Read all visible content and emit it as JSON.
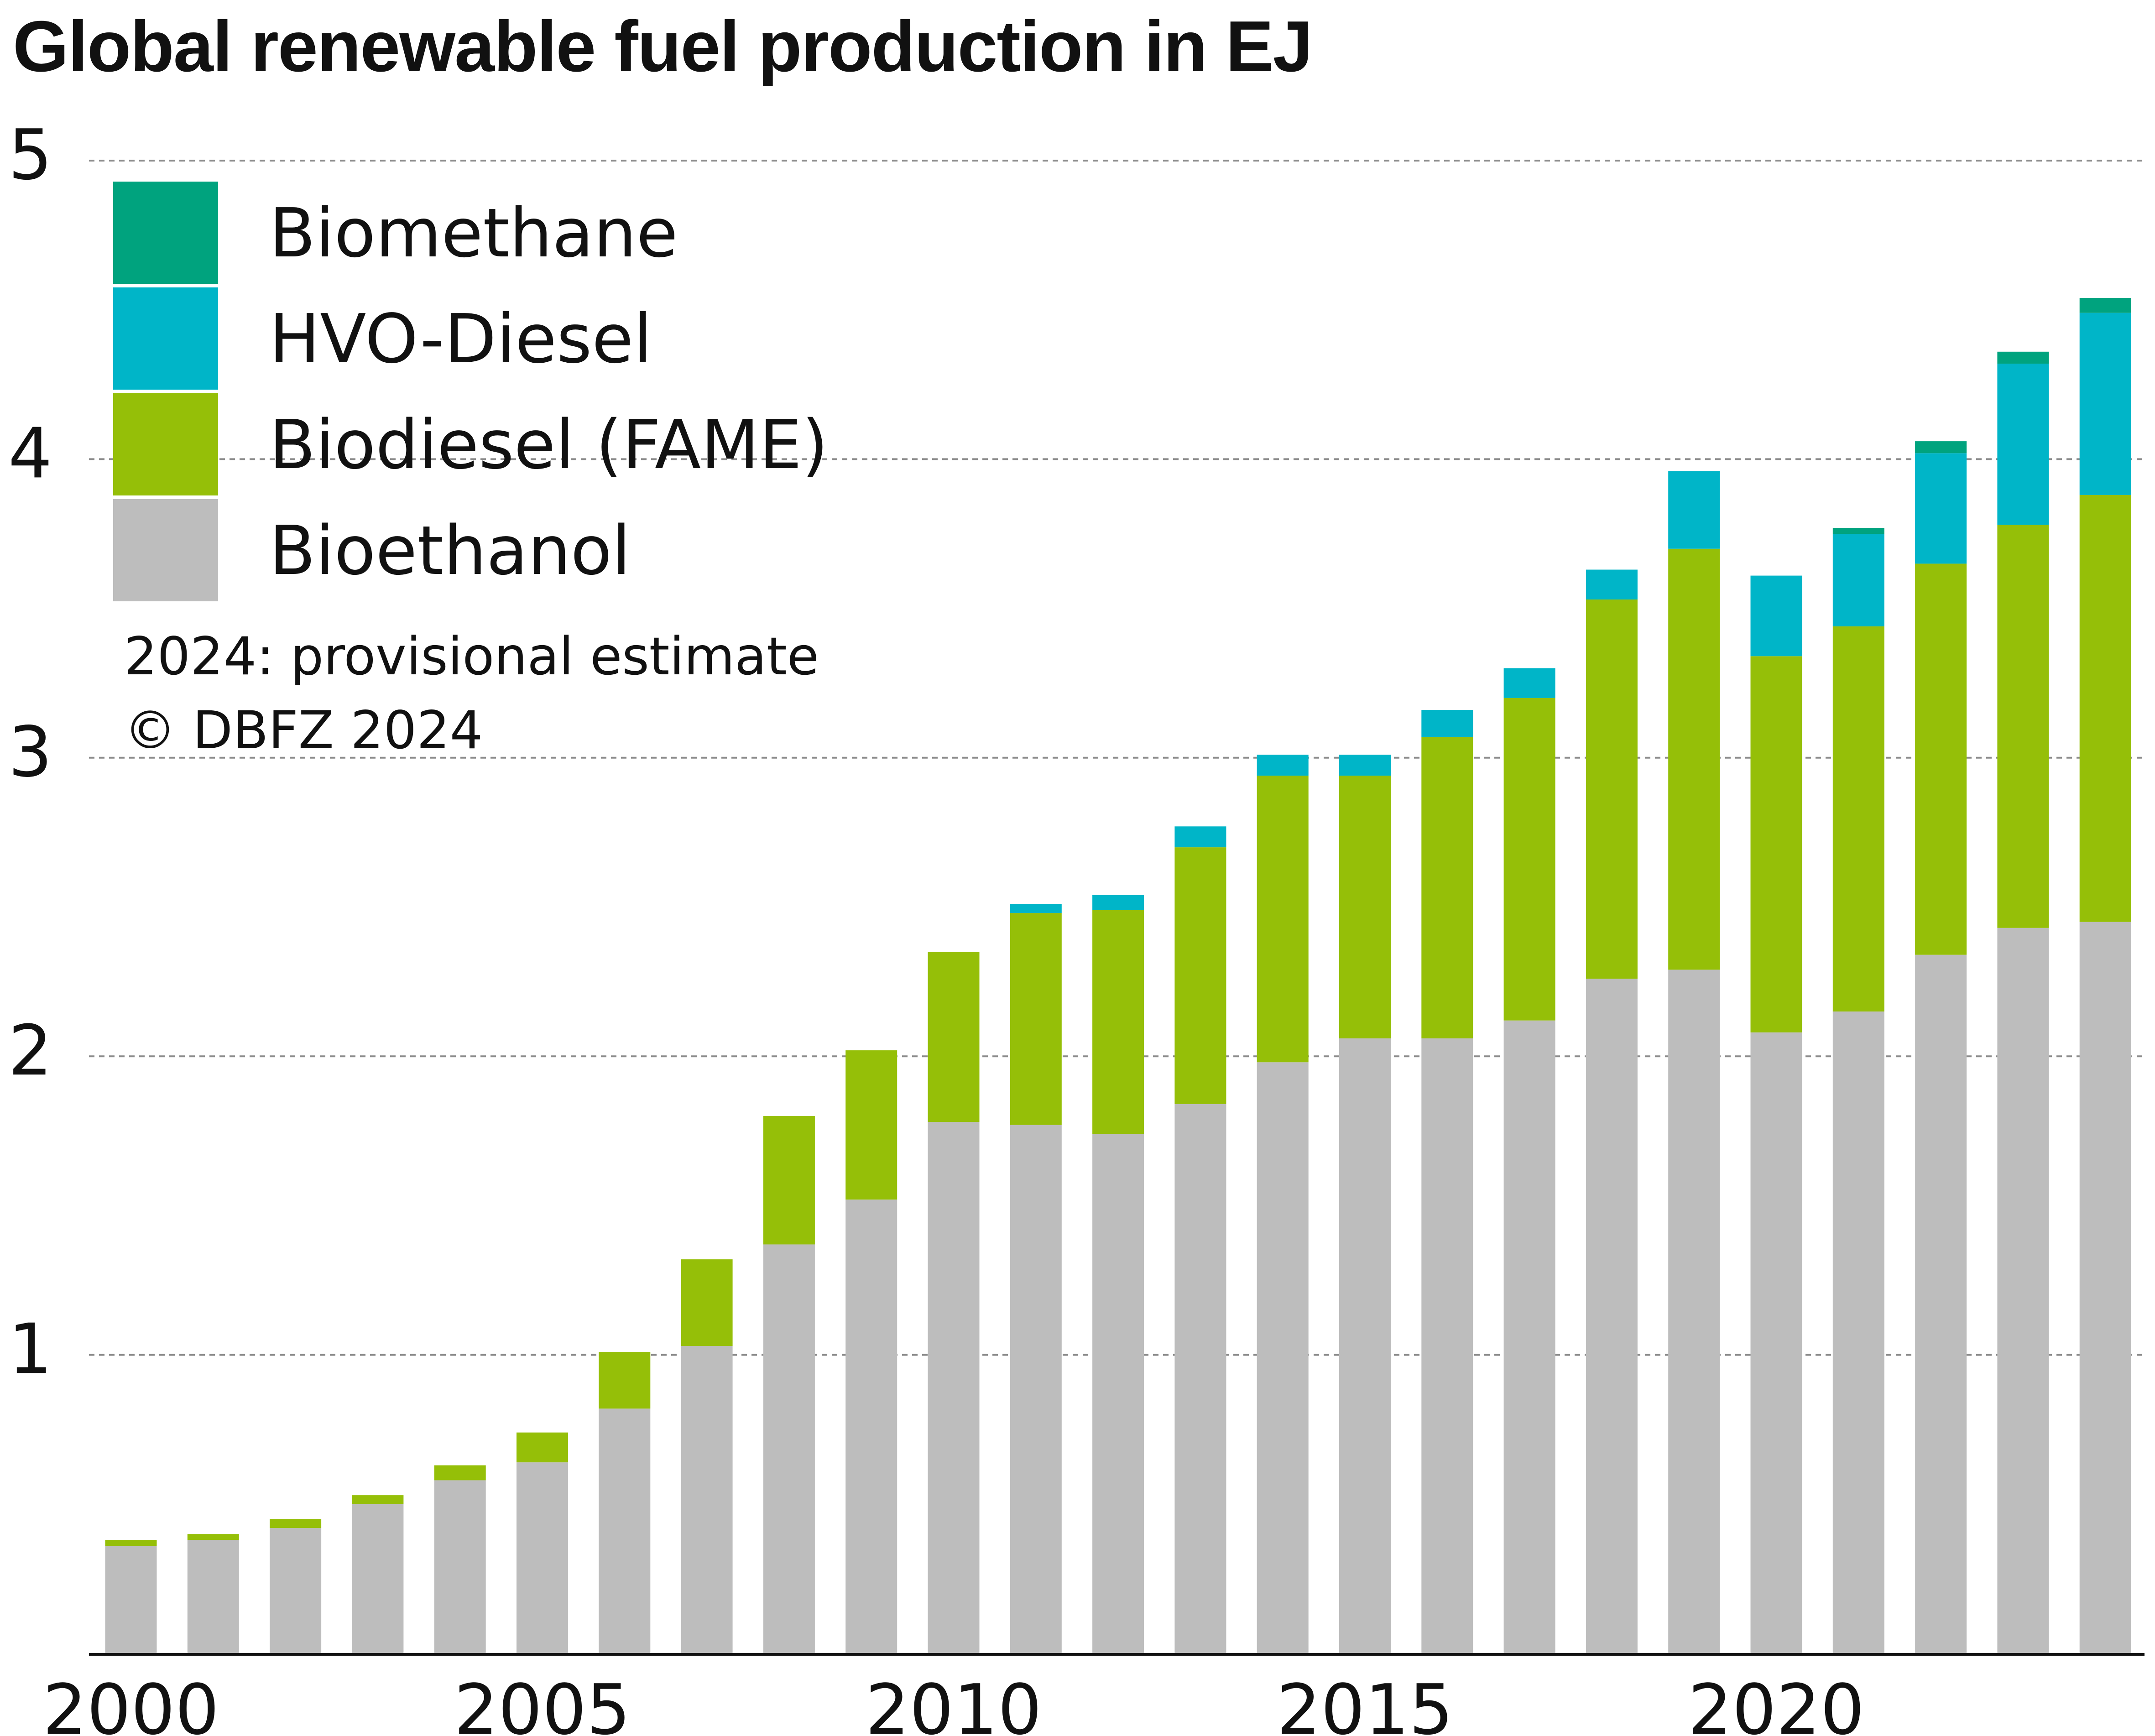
{
  "chart_data": {
    "type": "bar",
    "stacked": true,
    "title": "Global renewable fuel production in EJ",
    "xlabel": "",
    "ylabel": "",
    "ylim": [
      0,
      5
    ],
    "yticks": [
      1,
      2,
      3,
      4,
      5
    ],
    "xtick_labels": [
      "2000",
      "2005",
      "2010",
      "2015",
      "2020"
    ],
    "grid": "horizontal dashed",
    "legend_position": "top-left",
    "categories": [
      "2000",
      "2001",
      "2002",
      "2003",
      "2004",
      "2005",
      "2006",
      "2007",
      "2008",
      "2009",
      "2010",
      "2011",
      "2012",
      "2013",
      "2014",
      "2015",
      "2016",
      "2017",
      "2018",
      "2019",
      "2020",
      "2021",
      "2022",
      "2023",
      "2024"
    ],
    "series": [
      {
        "name": "Bioethanol",
        "color": "#bdbdbd",
        "values": [
          0.36,
          0.38,
          0.42,
          0.5,
          0.58,
          0.64,
          0.82,
          1.03,
          1.37,
          1.52,
          1.78,
          1.77,
          1.74,
          1.84,
          1.98,
          2.06,
          2.06,
          2.12,
          2.26,
          2.29,
          2.08,
          2.15,
          2.34,
          2.43,
          2.45
        ]
      },
      {
        "name": "Biodiesel (FAME)",
        "color": "#95bf08",
        "values": [
          0.02,
          0.02,
          0.03,
          0.03,
          0.05,
          0.1,
          0.19,
          0.29,
          0.43,
          0.5,
          0.57,
          0.71,
          0.75,
          0.86,
          0.96,
          0.88,
          1.01,
          1.08,
          1.27,
          1.41,
          1.26,
          1.29,
          1.31,
          1.35,
          1.43
        ]
      },
      {
        "name": "HVO-Diesel",
        "color": "#00b5c8",
        "values": [
          0,
          0,
          0,
          0,
          0,
          0,
          0,
          0,
          0,
          0,
          0,
          0.03,
          0.05,
          0.07,
          0.07,
          0.07,
          0.09,
          0.1,
          0.1,
          0.26,
          0.27,
          0.31,
          0.37,
          0.54,
          0.61
        ]
      },
      {
        "name": "Biomethane",
        "color": "#00a37e",
        "values": [
          0,
          0,
          0,
          0,
          0,
          0,
          0,
          0,
          0,
          0,
          0,
          0,
          0,
          0,
          0,
          0,
          0,
          0,
          0,
          0,
          0,
          0.02,
          0.04,
          0.04,
          0.05
        ]
      }
    ],
    "notes": [
      "2024: provisional estimate",
      "© DBFZ 2024"
    ]
  }
}
